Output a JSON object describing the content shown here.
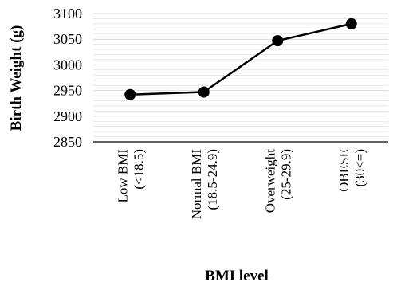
{
  "chart_data": {
    "type": "line",
    "categories": [
      [
        "Low BMI",
        "(<18.5)"
      ],
      [
        "Normal BMI",
        "(18.5-24.9)"
      ],
      [
        "Overweight",
        "(25-29.9)"
      ],
      [
        "OBESE",
        "(30<=)"
      ]
    ],
    "series": [
      {
        "values": [
          2942,
          2947,
          3047,
          3080
        ]
      }
    ],
    "xlabel": "BMI level",
    "ylabel": "Birth Weight (g)",
    "ylim": [
      2850,
      3100
    ],
    "yticks": [
      2850,
      2900,
      2950,
      3000,
      3050,
      3100
    ],
    "grid": true,
    "colors": {
      "line": "#000000",
      "marker": "#000000",
      "grid": "#d9d9d9"
    }
  }
}
